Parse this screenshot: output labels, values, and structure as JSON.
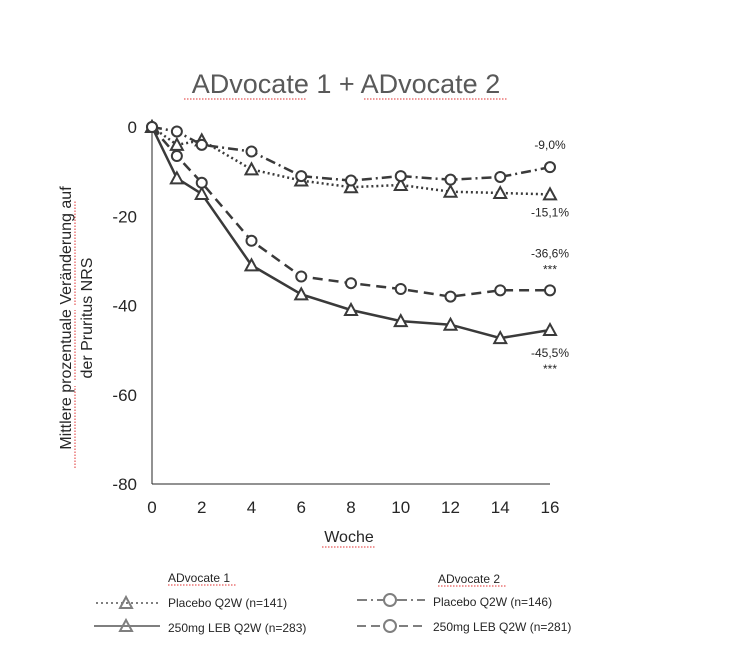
{
  "chart_data": {
    "type": "line",
    "title": "ADvocate 1 + ADvocate 2",
    "xlabel": "Woche",
    "ylabel_line1": "Mittlere prozentuale Veränderung auf",
    "ylabel_line2": "der Pruritus NRS",
    "x": [
      0,
      1,
      2,
      4,
      6,
      8,
      10,
      12,
      14,
      16
    ],
    "x_ticks": [
      0,
      2,
      4,
      6,
      8,
      10,
      12,
      14,
      16
    ],
    "y_ticks": [
      0,
      -20,
      -40,
      -60,
      -80
    ],
    "xlim": [
      0,
      16
    ],
    "ylim": [
      -80,
      0
    ],
    "grid": false,
    "series": [
      {
        "key": "placebo_adv1",
        "style": "dotted",
        "marker": "triangle",
        "values": [
          0,
          -4,
          -3,
          -9.5,
          -12,
          -13.5,
          -13,
          -14.5,
          -14.8,
          -15.1
        ]
      },
      {
        "key": "placebo_adv2",
        "style": "dashdot",
        "marker": "circle",
        "values": [
          0,
          -1,
          -4,
          -5.5,
          -11,
          -12,
          -11,
          -11.8,
          -11.2,
          -9.0
        ]
      },
      {
        "key": "leb_adv1",
        "style": "solid",
        "marker": "triangle",
        "values": [
          0,
          -11.5,
          -15,
          -31,
          -37.5,
          -41,
          -43.5,
          -44.3,
          -47.3,
          -45.5
        ]
      },
      {
        "key": "leb_adv2",
        "style": "dashed",
        "marker": "circle",
        "values": [
          0,
          -6.5,
          -12.5,
          -25.5,
          -33.5,
          -35,
          -36.3,
          -38,
          -36.6,
          -36.6
        ]
      }
    ],
    "end_labels": [
      {
        "series": "placebo_adv2",
        "text": "-9,0%",
        "sig": ""
      },
      {
        "series": "placebo_adv1",
        "text": "-15,1%",
        "sig": ""
      },
      {
        "series": "leb_adv2",
        "text": "-36,6%",
        "sig": "***"
      },
      {
        "series": "leb_adv1",
        "text": "-45,5%",
        "sig": "***"
      }
    ],
    "colors": {
      "line": "#3a3a3a",
      "legend_marker": "#7f7f7f"
    }
  },
  "legend": {
    "group1_title": "ADvocate 1",
    "group2_title": "ADvocate 2",
    "adv1_placebo": "Placebo Q2W (n=141)",
    "adv1_leb": "250mg LEB Q2W (n=283)",
    "adv2_placebo": "Placebo Q2W (n=146)",
    "adv2_leb": "250mg LEB Q2W (n=281)"
  }
}
